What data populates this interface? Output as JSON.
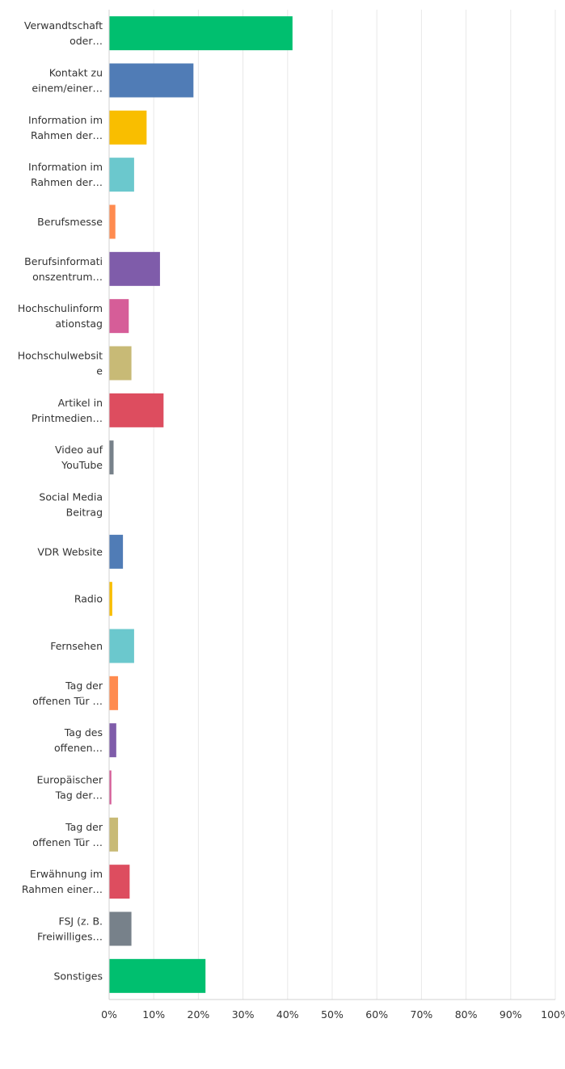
{
  "chart_data": {
    "type": "bar",
    "orientation": "horizontal",
    "title": "",
    "xlabel": "",
    "ylabel": "",
    "xlim": [
      0,
      100
    ],
    "grid": true,
    "legend": "none",
    "ticks": [
      "0%",
      "10%",
      "20%",
      "30%",
      "40%",
      "50%",
      "60%",
      "70%",
      "80%",
      "90%",
      "100%"
    ],
    "categories": [
      [
        "Verwandtschaft",
        "oder…"
      ],
      [
        "Kontakt zu",
        "einem/einer…"
      ],
      [
        "Information im",
        "Rahmen der…"
      ],
      [
        "Information im",
        "Rahmen der…"
      ],
      [
        "Berufsmesse"
      ],
      [
        "Berufsinformati",
        "onszentrum…"
      ],
      [
        "Hochschulinform",
        "ationstag"
      ],
      [
        "Hochschulwebsit",
        "e"
      ],
      [
        "Artikel in",
        "Printmedien…"
      ],
      [
        "Video auf",
        "YouTube"
      ],
      [
        "Social Media",
        "Beitrag"
      ],
      [
        "VDR Website"
      ],
      [
        "Radio"
      ],
      [
        "Fernsehen"
      ],
      [
        "Tag der",
        "offenen Tür …"
      ],
      [
        "Tag des",
        "offenen…"
      ],
      [
        "Europäischer",
        "Tag der…"
      ],
      [
        "Tag der",
        "offenen Tür …"
      ],
      [
        "Erwähnung im",
        "Rahmen einer…"
      ],
      [
        "FSJ (z. B.",
        "Freiwilliges…"
      ],
      [
        "Sonstiges"
      ]
    ],
    "values": [
      41.1,
      18.9,
      8.4,
      5.6,
      1.4,
      11.4,
      4.4,
      5.0,
      12.2,
      1.0,
      0.0,
      3.1,
      0.7,
      5.6,
      2.0,
      1.6,
      0.5,
      2.0,
      4.6,
      5.0,
      21.6
    ],
    "colors": [
      "#00BF6F",
      "#507CB6",
      "#F9BE00",
      "#6BC8CD",
      "#FF8B4F",
      "#7F5CAA",
      "#D65D98",
      "#C8BA76",
      "#DD4D5F",
      "#77818A",
      "#00BF6F",
      "#507CB6",
      "#F9BE00",
      "#6BC8CD",
      "#FF8B4F",
      "#7F5CAA",
      "#D65D98",
      "#C8BA76",
      "#DD4D5F",
      "#77818A",
      "#00BF6F"
    ]
  }
}
